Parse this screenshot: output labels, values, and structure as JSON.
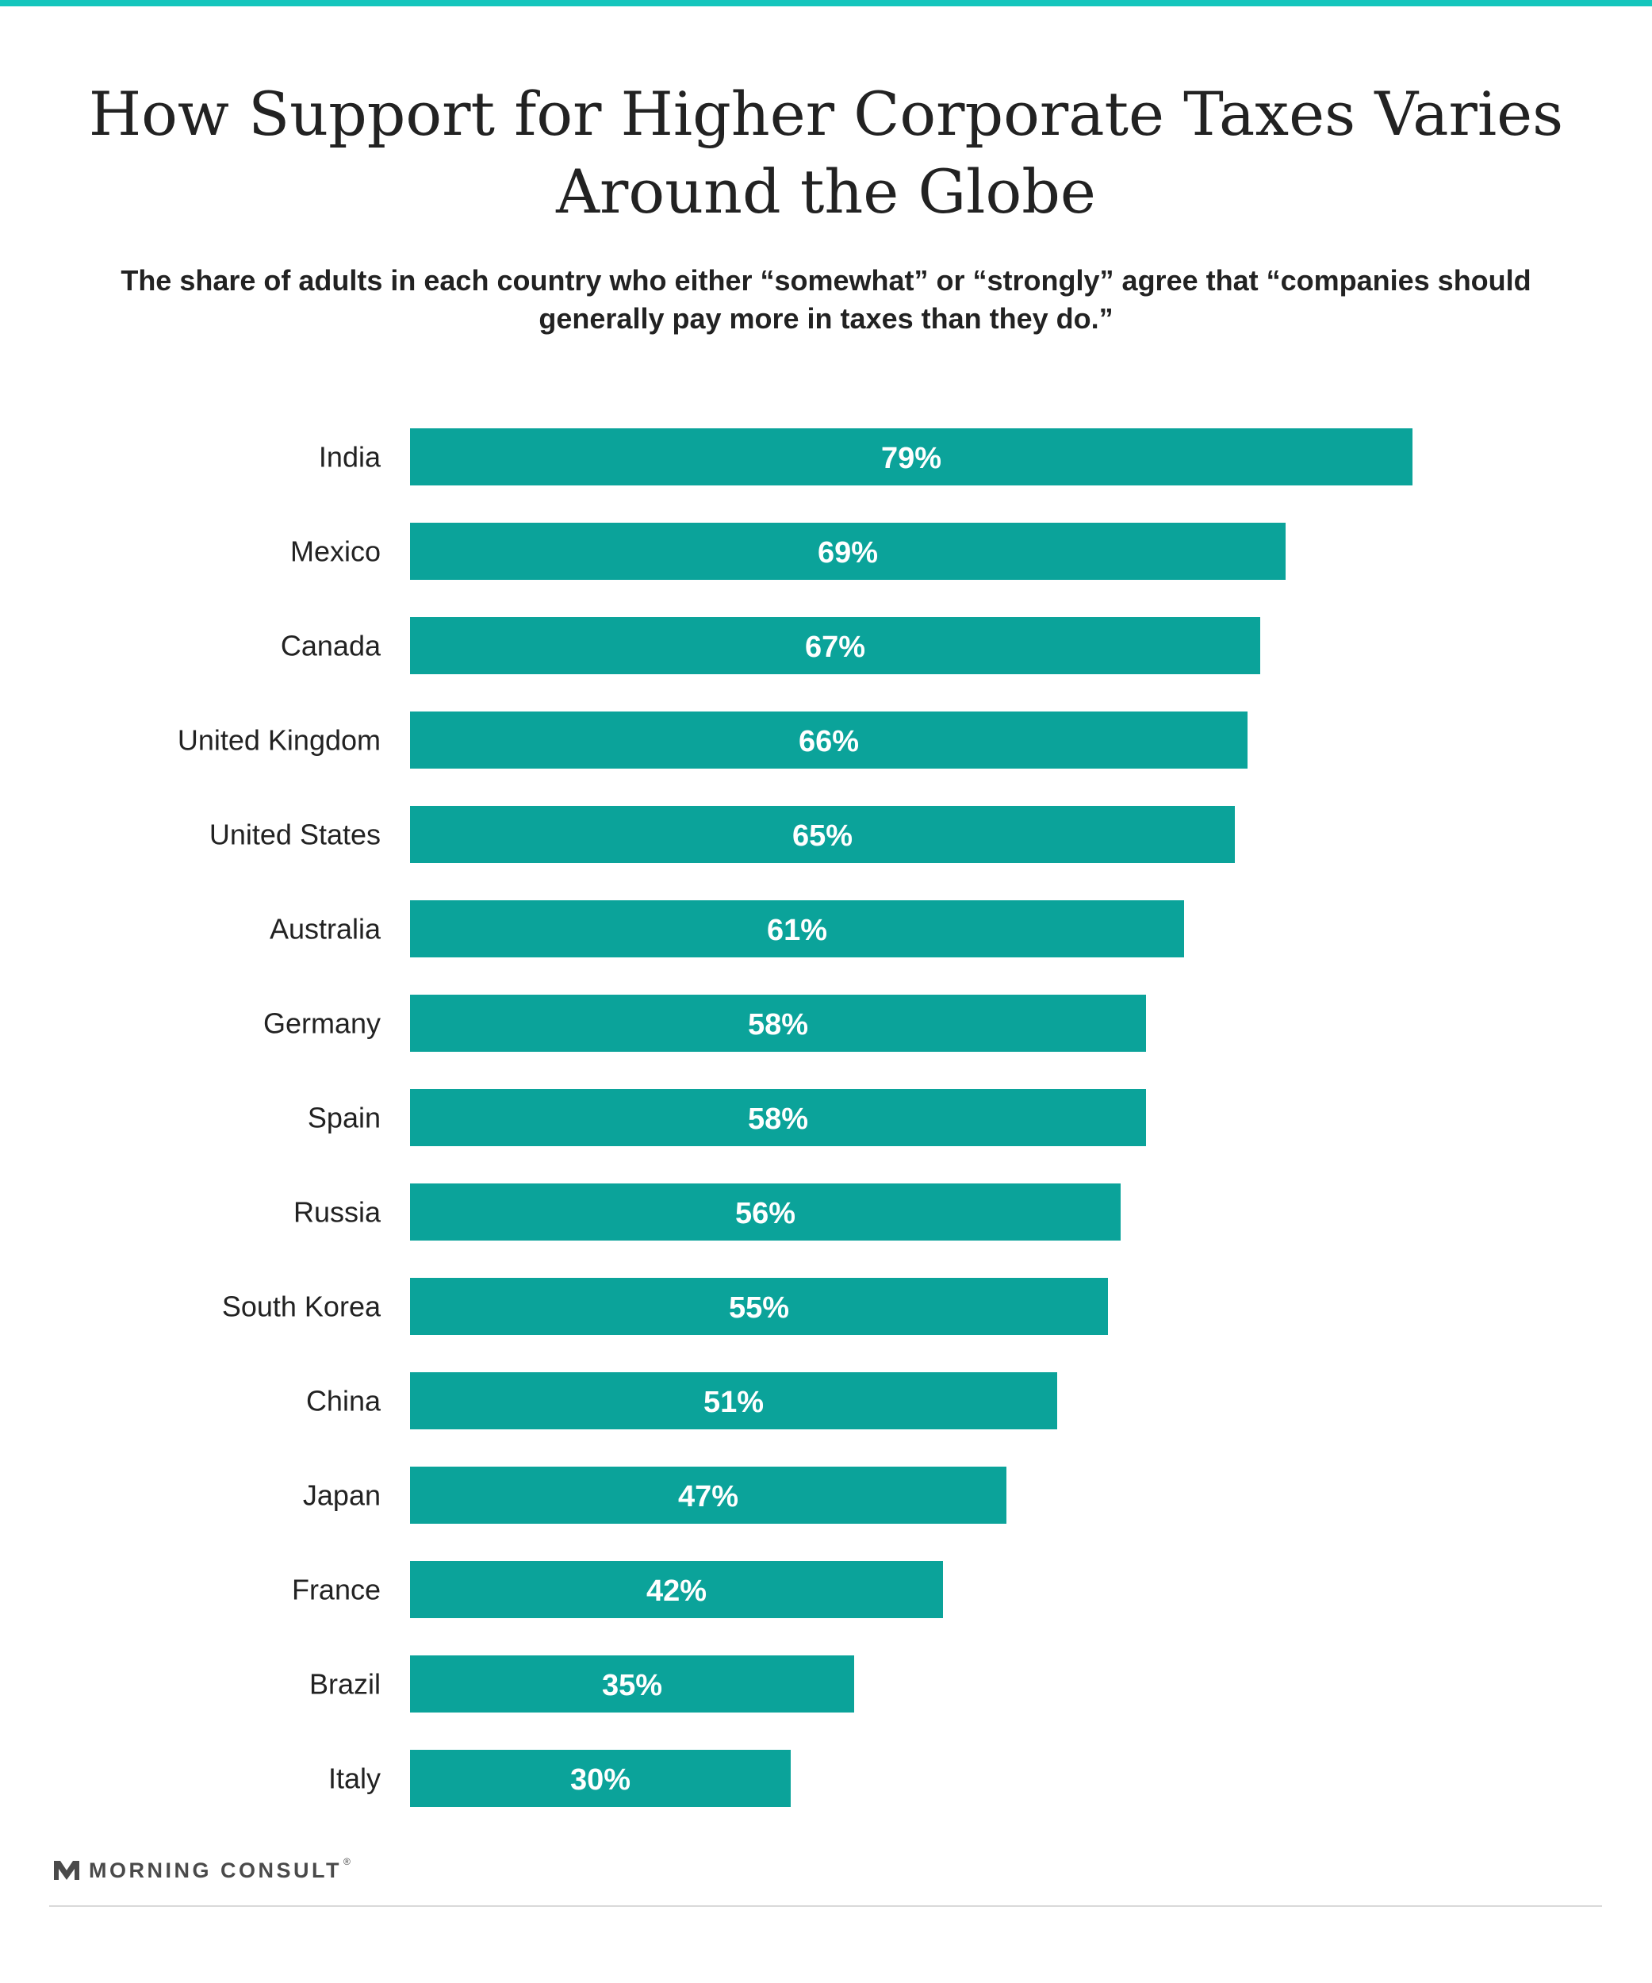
{
  "title": "How Support for Higher Corporate Taxes Varies Around the Globe",
  "subtitle": "The share of adults in each country who either “somewhat” or “strongly” agree that “companies should generally pay more in taxes than they do.”",
  "footer": {
    "brand": "MORNING CONSULT",
    "trademark": "®",
    "logo_icon": "morning-consult-m-logo"
  },
  "colors": {
    "bar": "#0ba39a",
    "accent_rule": "#14c6bd",
    "bar_label": "#ffffff",
    "category_label": "#222222"
  },
  "chart_data": {
    "type": "bar",
    "orientation": "horizontal",
    "categories": [
      "India",
      "Mexico",
      "Canada",
      "United Kingdom",
      "United States",
      "Australia",
      "Germany",
      "Spain",
      "Russia",
      "South Korea",
      "China",
      "Japan",
      "France",
      "Brazil",
      "Italy"
    ],
    "values": [
      79,
      69,
      67,
      66,
      65,
      61,
      58,
      58,
      56,
      55,
      51,
      47,
      42,
      35,
      30
    ],
    "labels": [
      "79%",
      "69%",
      "67%",
      "66%",
      "65%",
      "61%",
      "58%",
      "58%",
      "56%",
      "55%",
      "51%",
      "47%",
      "42%",
      "35%",
      "30%"
    ],
    "unit": "%",
    "xlim": [
      0,
      100
    ],
    "grid": false,
    "legend": "none",
    "data_labels": "inside-bar-center"
  }
}
